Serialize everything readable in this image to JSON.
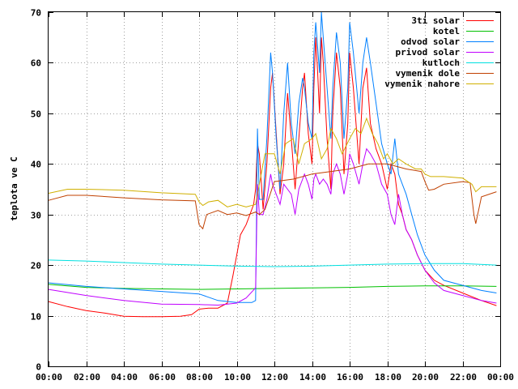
{
  "chart_data": {
    "type": "line",
    "title": "",
    "xlabel": "",
    "ylabel": "teplota ve C",
    "xlim": [
      0,
      24
    ],
    "ylim": [
      0,
      70
    ],
    "grid": true,
    "legend_position": "top-right",
    "x_ticks": [
      "00:00",
      "02:00",
      "04:00",
      "06:00",
      "08:00",
      "10:00",
      "12:00",
      "14:00",
      "16:00",
      "18:00",
      "20:00",
      "22:00",
      "00:00"
    ],
    "y_ticks": [
      "0",
      "10",
      "20",
      "30",
      "40",
      "50",
      "60",
      "70"
    ],
    "series": [
      {
        "name": "3ti solar",
        "color": "#ff0000",
        "points": [
          [
            0,
            12.8
          ],
          [
            1,
            11.8
          ],
          [
            2,
            11
          ],
          [
            3,
            10.5
          ],
          [
            4,
            9.9
          ],
          [
            5,
            9.8
          ],
          [
            6,
            9.8
          ],
          [
            7,
            9.9
          ],
          [
            7.6,
            10.2
          ],
          [
            8,
            11.3
          ],
          [
            8.5,
            11.5
          ],
          [
            9,
            11.5
          ],
          [
            9.5,
            12.5
          ],
          [
            9.8,
            18
          ],
          [
            10,
            22
          ],
          [
            10.2,
            26
          ],
          [
            10.5,
            28
          ],
          [
            10.7,
            30
          ],
          [
            10.9,
            32
          ],
          [
            11,
            35
          ],
          [
            11.1,
            44
          ],
          [
            11.2,
            42
          ],
          [
            11.4,
            31
          ],
          [
            11.6,
            40
          ],
          [
            11.8,
            55
          ],
          [
            11.9,
            58
          ],
          [
            12.1,
            46
          ],
          [
            12.3,
            34
          ],
          [
            12.5,
            40
          ],
          [
            12.7,
            54
          ],
          [
            12.9,
            45
          ],
          [
            13.1,
            35
          ],
          [
            13.3,
            45
          ],
          [
            13.5,
            55
          ],
          [
            13.6,
            58
          ],
          [
            13.8,
            46
          ],
          [
            14,
            40
          ],
          [
            14.1,
            55
          ],
          [
            14.2,
            65
          ],
          [
            14.3,
            58
          ],
          [
            14.4,
            50
          ],
          [
            14.5,
            65
          ],
          [
            14.6,
            60
          ],
          [
            14.8,
            45
          ],
          [
            15,
            35
          ],
          [
            15.1,
            50
          ],
          [
            15.3,
            62
          ],
          [
            15.5,
            55
          ],
          [
            15.7,
            38
          ],
          [
            15.9,
            48
          ],
          [
            16,
            62
          ],
          [
            16.2,
            55
          ],
          [
            16.5,
            40
          ],
          [
            16.7,
            55
          ],
          [
            16.9,
            59
          ],
          [
            17.1,
            48
          ],
          [
            17.4,
            43
          ],
          [
            17.7,
            40
          ],
          [
            18,
            35
          ],
          [
            18.2,
            40
          ],
          [
            18.4,
            38
          ],
          [
            18.6,
            32
          ],
          [
            18.8,
            30
          ],
          [
            19,
            27
          ],
          [
            19.3,
            25
          ],
          [
            19.6,
            22
          ],
          [
            20,
            19
          ],
          [
            20.5,
            17
          ],
          [
            21,
            16
          ],
          [
            22,
            14.5
          ],
          [
            23,
            13
          ],
          [
            23.8,
            12
          ]
        ]
      },
      {
        "name": "kotel",
        "color": "#00c000",
        "points": [
          [
            0,
            16.2
          ],
          [
            1,
            15.9
          ],
          [
            2,
            15.6
          ],
          [
            4,
            15.4
          ],
          [
            6,
            15.3
          ],
          [
            8,
            15.2
          ],
          [
            10,
            15.3
          ],
          [
            12,
            15.4
          ],
          [
            14,
            15.5
          ],
          [
            16,
            15.6
          ],
          [
            18,
            15.8
          ],
          [
            20,
            15.9
          ],
          [
            22,
            15.9
          ],
          [
            23.8,
            15.8
          ]
        ]
      },
      {
        "name": "odvod solar",
        "color": "#0080ff",
        "points": [
          [
            0,
            16.5
          ],
          [
            2,
            15.8
          ],
          [
            4,
            15.3
          ],
          [
            6,
            14.8
          ],
          [
            8,
            14.3
          ],
          [
            9,
            13
          ],
          [
            10,
            12.6
          ],
          [
            10.8,
            12.6
          ],
          [
            11,
            13
          ],
          [
            11.1,
            47
          ],
          [
            11.2,
            33
          ],
          [
            11.4,
            33
          ],
          [
            11.6,
            45
          ],
          [
            11.8,
            62
          ],
          [
            11.9,
            58
          ],
          [
            12.1,
            45
          ],
          [
            12.3,
            35
          ],
          [
            12.5,
            50
          ],
          [
            12.7,
            60
          ],
          [
            12.9,
            48
          ],
          [
            13.1,
            42
          ],
          [
            13.3,
            52
          ],
          [
            13.5,
            57
          ],
          [
            13.6,
            55
          ],
          [
            13.8,
            48
          ],
          [
            14,
            45
          ],
          [
            14.1,
            62
          ],
          [
            14.2,
            68
          ],
          [
            14.3,
            63
          ],
          [
            14.4,
            58
          ],
          [
            14.5,
            70
          ],
          [
            14.6,
            65
          ],
          [
            14.8,
            55
          ],
          [
            15,
            45
          ],
          [
            15.1,
            55
          ],
          [
            15.3,
            66
          ],
          [
            15.5,
            60
          ],
          [
            15.7,
            45
          ],
          [
            15.9,
            55
          ],
          [
            16,
            68
          ],
          [
            16.2,
            62
          ],
          [
            16.5,
            50
          ],
          [
            16.7,
            60
          ],
          [
            16.9,
            65
          ],
          [
            17.1,
            60
          ],
          [
            17.4,
            52
          ],
          [
            17.7,
            44
          ],
          [
            18,
            40
          ],
          [
            18.2,
            38
          ],
          [
            18.4,
            45
          ],
          [
            18.6,
            38
          ],
          [
            18.8,
            36
          ],
          [
            19,
            34
          ],
          [
            19.3,
            30
          ],
          [
            19.6,
            26
          ],
          [
            20,
            22
          ],
          [
            20.5,
            19
          ],
          [
            21,
            17
          ],
          [
            22,
            16
          ],
          [
            23,
            15
          ],
          [
            23.8,
            14.5
          ]
        ]
      },
      {
        "name": "privod solar",
        "color": "#c000ff",
        "points": [
          [
            0,
            15.2
          ],
          [
            2,
            14
          ],
          [
            4,
            13
          ],
          [
            6,
            12.3
          ],
          [
            8,
            12.2
          ],
          [
            9,
            12.1
          ],
          [
            10,
            12.5
          ],
          [
            10.5,
            13.5
          ],
          [
            11,
            15.5
          ],
          [
            11.1,
            36
          ],
          [
            11.2,
            30
          ],
          [
            11.4,
            30
          ],
          [
            11.6,
            33
          ],
          [
            11.8,
            38
          ],
          [
            11.9,
            36
          ],
          [
            12.1,
            34
          ],
          [
            12.3,
            32
          ],
          [
            12.5,
            36
          ],
          [
            12.7,
            35
          ],
          [
            12.9,
            34
          ],
          [
            13.1,
            30
          ],
          [
            13.3,
            35
          ],
          [
            13.5,
            37
          ],
          [
            13.6,
            38
          ],
          [
            13.8,
            36
          ],
          [
            14,
            33
          ],
          [
            14.1,
            37
          ],
          [
            14.2,
            38
          ],
          [
            14.4,
            36
          ],
          [
            14.6,
            37
          ],
          [
            14.8,
            36
          ],
          [
            15,
            34
          ],
          [
            15.1,
            38
          ],
          [
            15.3,
            40
          ],
          [
            15.5,
            38
          ],
          [
            15.7,
            34
          ],
          [
            15.9,
            38
          ],
          [
            16,
            42
          ],
          [
            16.2,
            40
          ],
          [
            16.5,
            36
          ],
          [
            16.7,
            40
          ],
          [
            16.9,
            43
          ],
          [
            17.1,
            42
          ],
          [
            17.4,
            40
          ],
          [
            17.7,
            36
          ],
          [
            18,
            34
          ],
          [
            18.2,
            30
          ],
          [
            18.4,
            28
          ],
          [
            18.6,
            34
          ],
          [
            18.8,
            30
          ],
          [
            19,
            27
          ],
          [
            19.3,
            25
          ],
          [
            19.6,
            22
          ],
          [
            20,
            19
          ],
          [
            20.5,
            16.5
          ],
          [
            21,
            15
          ],
          [
            22,
            14
          ],
          [
            23,
            13
          ],
          [
            23.8,
            12.5
          ]
        ]
      },
      {
        "name": "kutloch",
        "color": "#00e0e0",
        "points": [
          [
            0,
            21
          ],
          [
            2,
            20.8
          ],
          [
            4,
            20.5
          ],
          [
            6,
            20.2
          ],
          [
            8,
            20
          ],
          [
            10,
            19.8
          ],
          [
            12,
            19.7
          ],
          [
            14,
            19.8
          ],
          [
            16,
            20
          ],
          [
            18,
            20.2
          ],
          [
            20,
            20.3
          ],
          [
            22,
            20.3
          ],
          [
            23.8,
            20
          ]
        ]
      },
      {
        "name": "vymenik dole",
        "color": "#c04000",
        "points": [
          [
            0,
            32.8
          ],
          [
            1,
            33.8
          ],
          [
            2,
            33.8
          ],
          [
            4,
            33.3
          ],
          [
            6,
            32.9
          ],
          [
            7.8,
            32.7
          ],
          [
            8,
            28
          ],
          [
            8.2,
            27.2
          ],
          [
            8.4,
            30
          ],
          [
            9,
            30.8
          ],
          [
            9.5,
            30
          ],
          [
            10,
            30.3
          ],
          [
            10.5,
            29.8
          ],
          [
            11,
            30.5
          ],
          [
            11.2,
            30
          ],
          [
            11.5,
            31
          ],
          [
            12,
            36.5
          ],
          [
            13,
            37
          ],
          [
            14,
            38
          ],
          [
            15,
            38.5
          ],
          [
            16,
            39
          ],
          [
            17,
            40
          ],
          [
            18,
            40
          ],
          [
            19,
            39
          ],
          [
            19.8,
            38.5
          ],
          [
            20,
            36.5
          ],
          [
            20.2,
            34.8
          ],
          [
            20.5,
            35
          ],
          [
            21,
            36
          ],
          [
            22,
            36.5
          ],
          [
            22.4,
            36.3
          ],
          [
            22.6,
            30
          ],
          [
            22.7,
            28.2
          ],
          [
            23,
            33.5
          ],
          [
            23.8,
            34.5
          ]
        ]
      },
      {
        "name": "vymenik nahore",
        "color": "#d0b000",
        "points": [
          [
            0,
            34.2
          ],
          [
            1,
            35
          ],
          [
            2,
            35
          ],
          [
            4,
            34.8
          ],
          [
            6,
            34.3
          ],
          [
            7.8,
            34
          ],
          [
            8,
            32.5
          ],
          [
            8.2,
            31.8
          ],
          [
            8.5,
            32.5
          ],
          [
            9,
            32.8
          ],
          [
            9.5,
            31.5
          ],
          [
            10,
            32
          ],
          [
            10.5,
            31.5
          ],
          [
            11,
            32
          ],
          [
            11.2,
            36
          ],
          [
            11.5,
            42
          ],
          [
            12,
            42
          ],
          [
            12.3,
            38
          ],
          [
            12.6,
            44
          ],
          [
            13,
            45
          ],
          [
            13.3,
            40
          ],
          [
            13.6,
            44
          ],
          [
            14,
            45
          ],
          [
            14.2,
            46
          ],
          [
            14.5,
            41
          ],
          [
            14.8,
            43
          ],
          [
            15,
            47
          ],
          [
            15.3,
            45
          ],
          [
            15.6,
            42
          ],
          [
            16,
            45
          ],
          [
            16.3,
            47
          ],
          [
            16.6,
            46
          ],
          [
            16.9,
            49
          ],
          [
            17.2,
            46
          ],
          [
            17.5,
            44
          ],
          [
            17.8,
            41
          ],
          [
            18,
            42
          ],
          [
            18.3,
            40
          ],
          [
            18.6,
            41
          ],
          [
            19,
            40
          ],
          [
            19.5,
            39
          ],
          [
            19.8,
            39
          ],
          [
            20,
            38
          ],
          [
            20.3,
            37.5
          ],
          [
            21,
            37.5
          ],
          [
            22,
            37.2
          ],
          [
            22.5,
            36
          ],
          [
            22.7,
            34.5
          ],
          [
            23,
            35.5
          ],
          [
            23.8,
            35.5
          ]
        ]
      }
    ]
  }
}
